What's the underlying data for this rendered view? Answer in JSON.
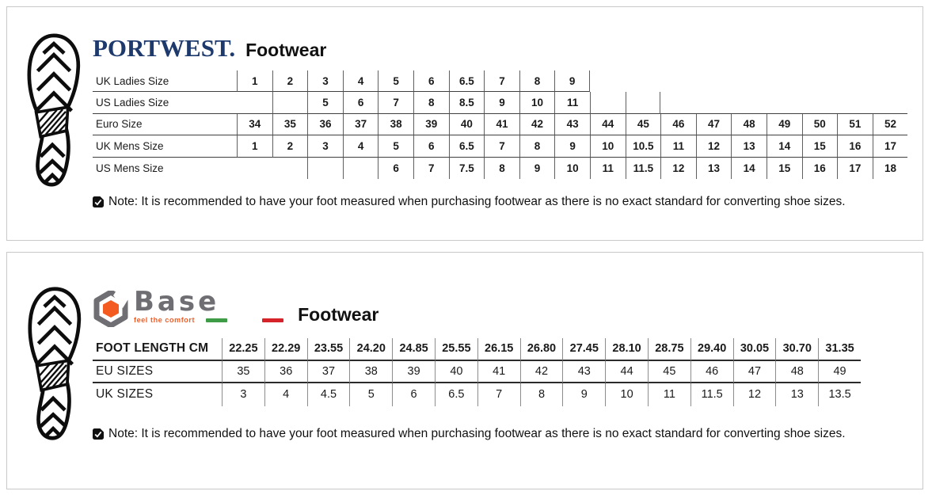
{
  "colors": {
    "portwest_navy": "#1e3a6d",
    "ink": "#1a1a1a",
    "panel_border": "#c9c9c9",
    "pw_line_h": "#3f3f3f",
    "pw_line_v": "#5f5f5f",
    "base_line_h": "#2b2b2b",
    "base_line_v": "#8c8c8c",
    "base_gray": "#6e6e73",
    "base_orange": "#f35b21",
    "flag_green": "#3f9c46",
    "flag_red": "#d6232a"
  },
  "portwest": {
    "brand": "PORTWEST.",
    "title": "Footwear",
    "table": {
      "rows": [
        {
          "label": "UK Ladies Size",
          "underline": "cells",
          "cells": [
            "1",
            "2",
            "3",
            "4",
            "5",
            "6",
            "6.5",
            "7",
            "8",
            "9",
            null,
            null,
            null,
            null,
            null,
            null,
            null,
            null,
            null
          ]
        },
        {
          "label": "US Ladies Size",
          "underline": "full",
          "lead_border": false,
          "cells": [
            "",
            "",
            "5",
            "6",
            "7",
            "8",
            "8.5",
            "9",
            "10",
            "11",
            "",
            "",
            null,
            null,
            null,
            null,
            null,
            null,
            null
          ]
        },
        {
          "label": "Euro Size",
          "underline": "full",
          "cells": [
            "34",
            "35",
            "36",
            "37",
            "38",
            "39",
            "40",
            "41",
            "42",
            "43",
            "44",
            "45",
            "46",
            "47",
            "48",
            "49",
            "50",
            "51",
            "52"
          ]
        },
        {
          "label": "UK Mens Size",
          "underline": "full",
          "cells": [
            "1",
            "2",
            "3",
            "4",
            "5",
            "6",
            "6.5",
            "7",
            "8",
            "9",
            "10",
            "10.5",
            "11",
            "12",
            "13",
            "14",
            "15",
            "16",
            "17"
          ]
        },
        {
          "label": "US Mens Size",
          "underline": "none",
          "cells": [
            null,
            null,
            "",
            "",
            "6",
            "7",
            "7.5",
            "8",
            "9",
            "10",
            "11",
            "11.5",
            "12",
            "13",
            "14",
            "15",
            "16",
            "17",
            "18"
          ]
        }
      ]
    },
    "note": "Note: It is recommended to have your foot measured when purchasing footwear as there is no exact standard for converting shoe sizes."
  },
  "base": {
    "brand": "Base",
    "tagline": "feel the comfort",
    "title": "Footwear",
    "table": {
      "rows": [
        {
          "label": "FOOT LENGTH CM",
          "bold": true,
          "underline": "full",
          "cells": [
            "22.25",
            "22.29",
            "23.55",
            "24.20",
            "24.85",
            "25.55",
            "26.15",
            "26.80",
            "27.45",
            "28.10",
            "28.75",
            "29.40",
            "30.05",
            "30.70",
            "31.35"
          ]
        },
        {
          "label": "EU SIZES",
          "underline": "full",
          "cells": [
            "35",
            "36",
            "37",
            "38",
            "39",
            "40",
            "41",
            "42",
            "43",
            "44",
            "45",
            "46",
            "47",
            "48",
            "49"
          ]
        },
        {
          "label": "UK SIZES",
          "underline": "none",
          "cells": [
            "3",
            "4",
            "4.5",
            "5",
            "6",
            "6.5",
            "7",
            "8",
            "9",
            "10",
            "11",
            "11.5",
            "12",
            "13",
            "13.5"
          ]
        }
      ]
    },
    "note": "Note: It is recommended to have your foot measured when purchasing footwear as there is no exact standard for converting shoe sizes."
  }
}
